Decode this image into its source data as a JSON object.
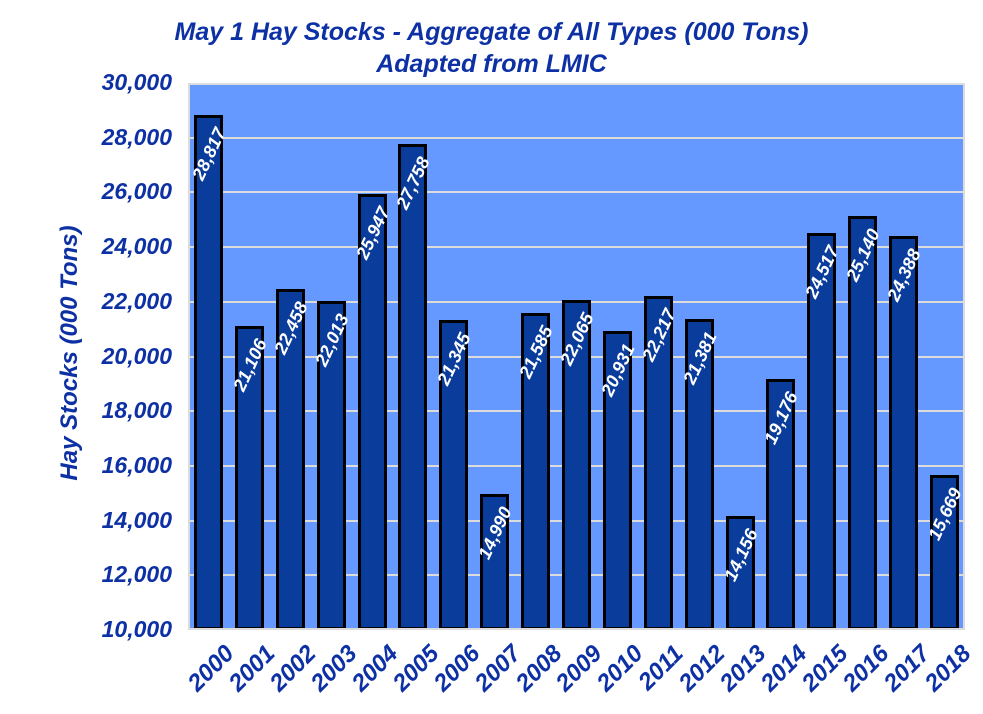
{
  "chart_data": {
    "type": "bar",
    "title": "May 1 Hay Stocks - Aggregate of All Types (000 Tons)",
    "subtitle": "Adapted from LMIC",
    "xlabel": "",
    "ylabel": "Hay Stocks (000 Tons)",
    "categories": [
      "2000",
      "2001",
      "2002",
      "2003",
      "2004",
      "2005",
      "2006",
      "2007",
      "2008",
      "2009",
      "2010",
      "2011",
      "2012",
      "2013",
      "2014",
      "2015",
      "2016",
      "2017",
      "2018"
    ],
    "values": [
      28817,
      21106,
      22458,
      22013,
      25947,
      27758,
      21345,
      14990,
      21585,
      22065,
      20931,
      22217,
      21381,
      14156,
      19176,
      24517,
      25140,
      24388,
      15669
    ],
    "data_labels": [
      "28,817",
      "21,106",
      "22,458",
      "22,013",
      "25,947",
      "27,758",
      "21,345",
      "14,990",
      "21,585",
      "22,065",
      "20,931",
      "22,217",
      "21,381",
      "14,156",
      "19,176",
      "24,517",
      "25,140",
      "24,388",
      "15,669"
    ],
    "ylim": [
      10000,
      30000
    ],
    "ytick_step": 2000,
    "ytick_labels": [
      "10,000",
      "12,000",
      "14,000",
      "16,000",
      "18,000",
      "20,000",
      "22,000",
      "24,000",
      "26,000",
      "28,000",
      "30,000"
    ],
    "grid": true,
    "legend": "none",
    "colors": {
      "plot_background": "#6699FF",
      "bar_fill": "#0A3C9B",
      "bar_border": "#000000",
      "gridline": "#DCDCDC",
      "axis_text": "#0D31A5",
      "data_label_text": "#FFFFFF",
      "page_background": "#FFFFFF"
    }
  }
}
